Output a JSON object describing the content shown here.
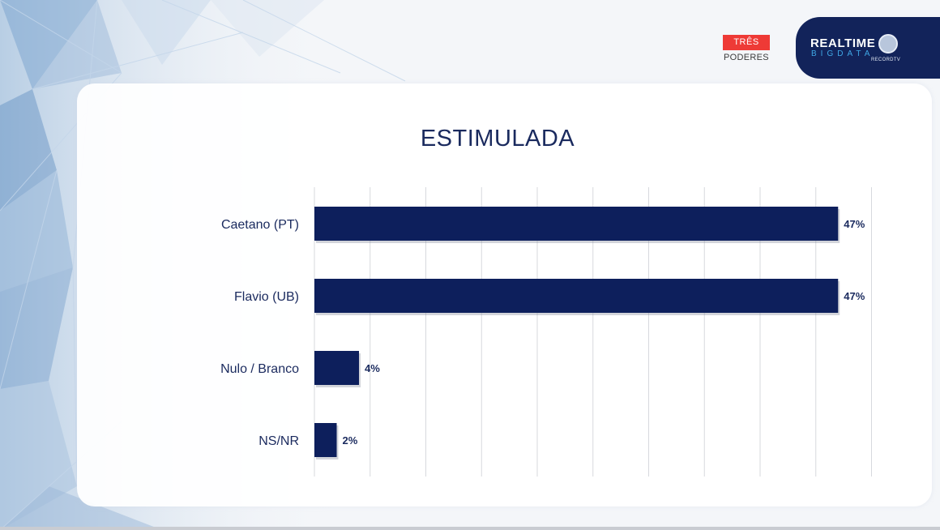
{
  "header": {
    "tres_poderes_top": "TRÊS",
    "tres_poderes_bottom": "PODERES",
    "brand_line1": "REALTIME",
    "brand_line2": "BIGDATA",
    "brand_sub": "RECORDTV"
  },
  "colors": {
    "bar": "#0d1f5c",
    "title": "#1a2a5e",
    "grid": "#d7d9de",
    "brand_bg": "#12235a",
    "tres_red": "#ee3a36"
  },
  "chart_data": {
    "type": "bar",
    "orientation": "horizontal",
    "title": "ESTIMULADA",
    "categories": [
      "Caetano (PT)",
      "Flavio (UB)",
      "Nulo / Branco",
      "NS/NR"
    ],
    "values": [
      47,
      47,
      4,
      2
    ],
    "value_labels": [
      "47%",
      "47%",
      "4%",
      "2%"
    ],
    "xlim": [
      0,
      50
    ],
    "grid": true,
    "legend": "none"
  }
}
